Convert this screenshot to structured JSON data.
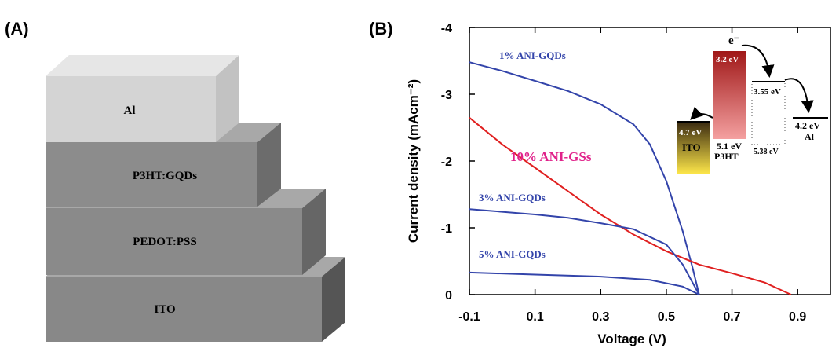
{
  "panel_a": {
    "label": "(A)",
    "layers": [
      "Al",
      "P3HT:GQDs",
      "PEDOT:PSS",
      "ITO"
    ]
  },
  "chart_data": {
    "type": "line",
    "label": "(B)",
    "x_label": "Voltage  (V)",
    "y_label": "Current density (mAcm⁻²)",
    "xlim": [
      -0.1,
      1.0
    ],
    "ylim": [
      0,
      -4
    ],
    "xticks": [
      -0.1,
      0.1,
      0.3,
      0.5,
      0.7,
      0.9
    ],
    "yticks": [
      0,
      -1,
      -2,
      -3,
      -4
    ],
    "series": [
      {
        "name": "1% ANI-GQDs",
        "color": "#3344aa",
        "label_color": "#3344aa",
        "x": [
          -0.1,
          0.0,
          0.1,
          0.2,
          0.3,
          0.4,
          0.45,
          0.5,
          0.55,
          0.58,
          0.6
        ],
        "values": [
          -3.48,
          -3.35,
          -3.2,
          -3.05,
          -2.85,
          -2.55,
          -2.25,
          -1.7,
          -0.95,
          -0.4,
          0
        ]
      },
      {
        "name": "10% ANI-GSs",
        "color": "#e02020",
        "label_color": "#e0218a",
        "x": [
          -0.1,
          0.0,
          0.1,
          0.2,
          0.3,
          0.4,
          0.5,
          0.6,
          0.7,
          0.8,
          0.88
        ],
        "values": [
          -2.65,
          -2.25,
          -1.9,
          -1.55,
          -1.2,
          -0.9,
          -0.65,
          -0.45,
          -0.32,
          -0.18,
          0
        ]
      },
      {
        "name": "3% ANI-GQDs",
        "color": "#3344aa",
        "label_color": "#3344aa",
        "x": [
          -0.1,
          0.1,
          0.2,
          0.3,
          0.4,
          0.5,
          0.55,
          0.6
        ],
        "values": [
          -1.28,
          -1.2,
          -1.15,
          -1.07,
          -0.98,
          -0.75,
          -0.45,
          0
        ]
      },
      {
        "name": "5% ANI-GQDs",
        "color": "#3344aa",
        "label_color": "#3344aa",
        "x": [
          -0.1,
          0.1,
          0.3,
          0.45,
          0.55,
          0.6
        ],
        "values": [
          -0.33,
          -0.3,
          -0.27,
          -0.22,
          -0.12,
          0
        ]
      }
    ]
  },
  "inset": {
    "electron": "e⁻",
    "p3ht_lumo": "3.2 eV",
    "gqd_lumo": "3.55 eV",
    "ito_wf": "4.7 eV",
    "al_wf": "4.2 eV",
    "ito": "ITO",
    "p3ht_homo": "5.1 eV",
    "p3ht": "P3HT",
    "gqd_homo": "5.38 eV",
    "al": "Al"
  }
}
